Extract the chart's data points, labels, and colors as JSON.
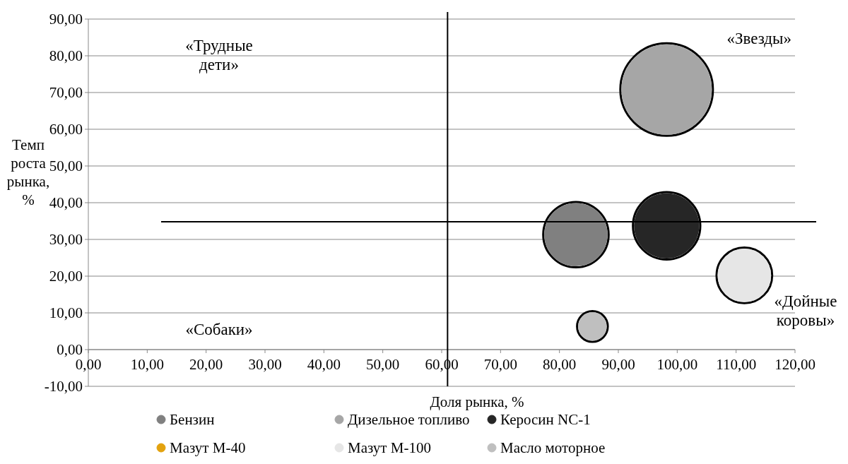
{
  "chart_data": {
    "type": "bubble",
    "xlabel": "Доля рынка, %",
    "ylabel": "Темп роста рынка, %",
    "xlim": [
      0,
      120
    ],
    "ylim": [
      -10,
      90
    ],
    "xticks": [
      {
        "value": 0,
        "label": "0,00"
      },
      {
        "value": 10,
        "label": "10,00"
      },
      {
        "value": 20,
        "label": "20,00"
      },
      {
        "value": 30,
        "label": "30,00"
      },
      {
        "value": 40,
        "label": "40,00"
      },
      {
        "value": 50,
        "label": "50,00"
      },
      {
        "value": 60,
        "label": "60,00"
      },
      {
        "value": 70,
        "label": "70,00"
      },
      {
        "value": 80,
        "label": "80,00"
      },
      {
        "value": 90,
        "label": "90,00"
      },
      {
        "value": 100,
        "label": "100,00"
      },
      {
        "value": 110,
        "label": "110,00"
      },
      {
        "value": 120,
        "label": "120,00"
      }
    ],
    "yticks": [
      {
        "value": -10,
        "label": "-10,00"
      },
      {
        "value": 0,
        "label": "0,00"
      },
      {
        "value": 10,
        "label": "10,00"
      },
      {
        "value": 20,
        "label": "20,00"
      },
      {
        "value": 30,
        "label": "30,00"
      },
      {
        "value": 40,
        "label": "40,00"
      },
      {
        "value": 50,
        "label": "50,00"
      },
      {
        "value": 60,
        "label": "60,00"
      },
      {
        "value": 70,
        "label": "70,00"
      },
      {
        "value": 80,
        "label": "80,00"
      },
      {
        "value": 90,
        "label": "90,00"
      }
    ],
    "grid": "y",
    "legend": "bottom",
    "series": [
      {
        "name": "Бензин",
        "color": "#808080",
        "x": [
          82.8
        ],
        "values": [
          31.3
        ],
        "sizes": [
          0.49
        ]
      },
      {
        "name": "Дизельное топливо",
        "color": "#a6a6a6",
        "x": [
          98.2
        ],
        "values": [
          70.8
        ],
        "sizes": [
          1
        ]
      },
      {
        "name": "Керосин  NC-1",
        "color": "#262626",
        "x": [
          98.2
        ],
        "values": [
          33.7
        ],
        "sizes": [
          0.52
        ]
      },
      {
        "name": "Мазут М-40",
        "color": "#e3a20e",
        "x": [
          null
        ],
        "values": [
          null
        ],
        "sizes": [
          null
        ]
      },
      {
        "name": "Мазут М-100",
        "color": "#e6e6e6",
        "x": [
          111.4
        ],
        "values": [
          20.2
        ],
        "sizes": [
          0.35
        ]
      },
      {
        "name": "Масло моторное",
        "color": "#bfbfbf",
        "x": [
          85.6
        ],
        "values": [
          6.3
        ],
        "sizes": [
          0.1
        ]
      }
    ],
    "ref_lines": [
      {
        "axis": "x",
        "value": 61,
        "color": "#000000"
      },
      {
        "axis": "y",
        "value": 34.8,
        "color": "#000000"
      }
    ],
    "annotations": [
      "«Трудные дети»",
      "«Звезды»",
      "«Собаки»",
      "«Дойные коровы»"
    ]
  }
}
